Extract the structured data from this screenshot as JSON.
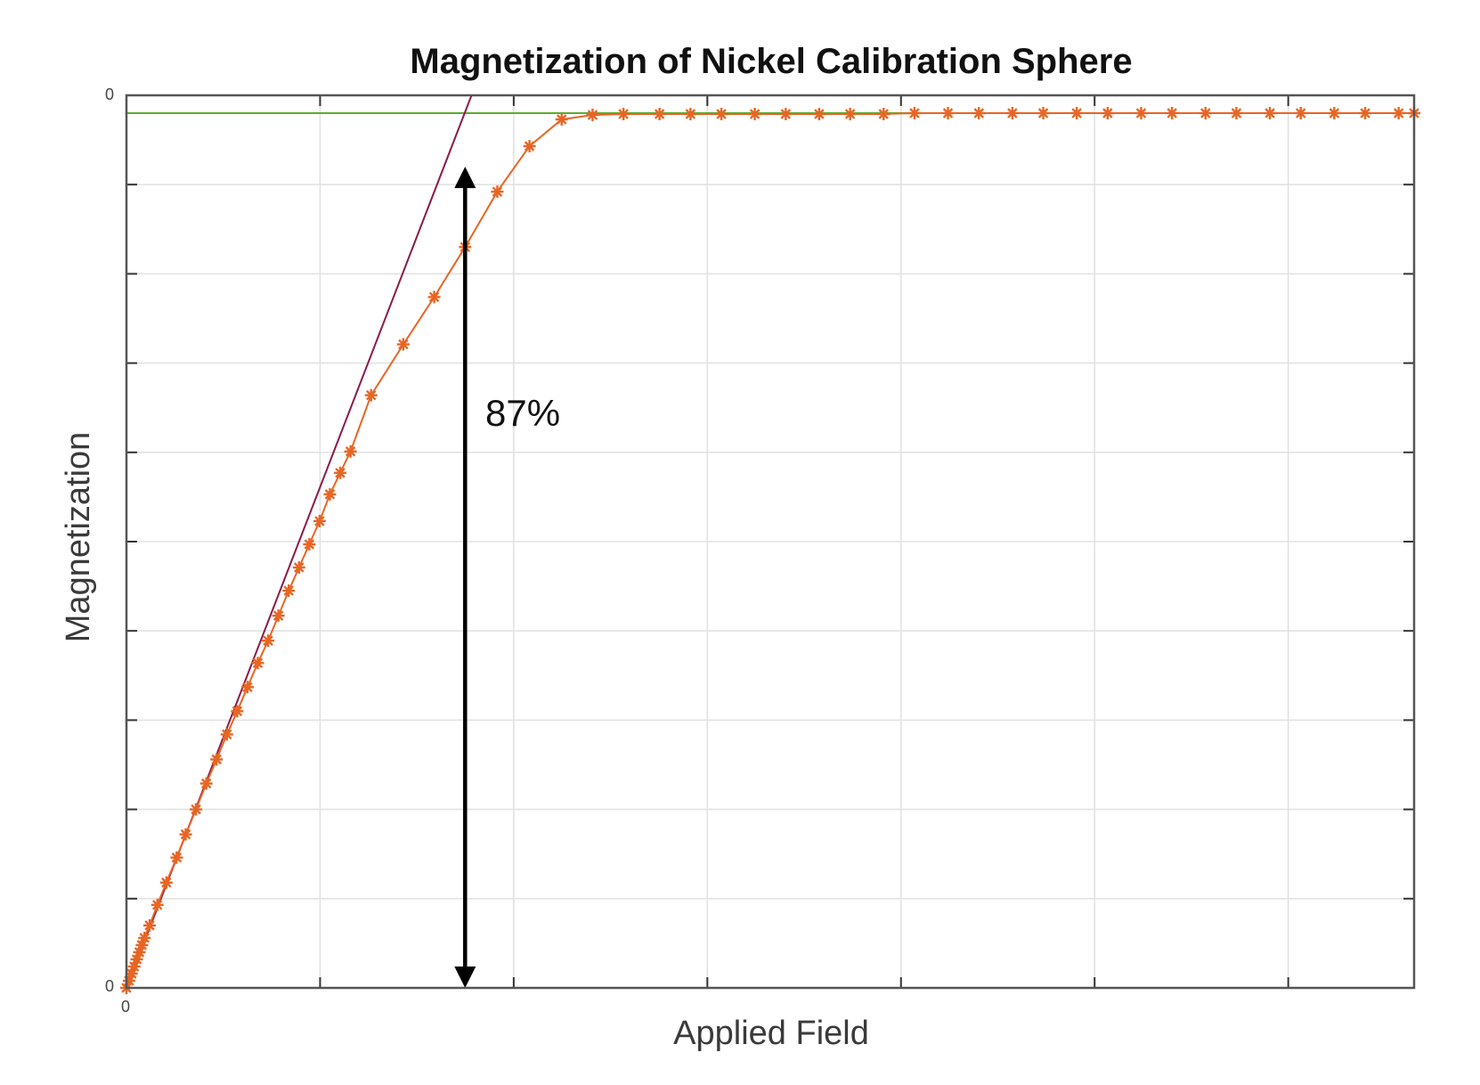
{
  "chart_data": {
    "type": "line",
    "title": "Magnetization of Nickel Calibration Sphere",
    "xlabel": "Applied Field",
    "ylabel": "Magnetization",
    "x_ticks_count": 7,
    "y_ticks_count": 10,
    "xlim": [
      0,
      1
    ],
    "ylim": [
      0,
      1
    ],
    "tick_labels": {
      "x_origin": "0",
      "y_origin": "0",
      "y_top": "0"
    },
    "grid": true,
    "colors": {
      "data": "#e86524",
      "fit_line": "#8b1a4a",
      "saturation_line": "#5cab2e",
      "annotation": "#000000"
    },
    "series": [
      {
        "marker": "star",
        "x": [
          0.0,
          0.002,
          0.004,
          0.006,
          0.008,
          0.01,
          0.012,
          0.014,
          0.018,
          0.024,
          0.031,
          0.039,
          0.046,
          0.054,
          0.062,
          0.07,
          0.078,
          0.086,
          0.094,
          0.102,
          0.11,
          0.118,
          0.126,
          0.134,
          0.142,
          0.15,
          0.158,
          0.166,
          0.174,
          0.19,
          0.215,
          0.239,
          0.263,
          0.288,
          0.313,
          0.338,
          0.362,
          0.386,
          0.414,
          0.438,
          0.462,
          0.488,
          0.512,
          0.538,
          0.562,
          0.588,
          0.612,
          0.638,
          0.662,
          0.688,
          0.712,
          0.738,
          0.762,
          0.788,
          0.812,
          0.838,
          0.862,
          0.888,
          0.912,
          0.938,
          0.962,
          0.988,
          1.0
        ],
        "y": [
          0.0,
          0.008,
          0.016,
          0.024,
          0.032,
          0.04,
          0.048,
          0.056,
          0.07,
          0.093,
          0.118,
          0.146,
          0.172,
          0.2,
          0.229,
          0.256,
          0.284,
          0.31,
          0.337,
          0.364,
          0.389,
          0.417,
          0.445,
          0.471,
          0.497,
          0.523,
          0.553,
          0.577,
          0.601,
          0.664,
          0.721,
          0.774,
          0.83,
          0.892,
          0.943,
          0.973,
          0.978,
          0.979,
          0.979,
          0.979,
          0.979,
          0.979,
          0.979,
          0.979,
          0.979,
          0.979,
          0.98,
          0.98,
          0.98,
          0.98,
          0.98,
          0.98,
          0.98,
          0.98,
          0.98,
          0.98,
          0.98,
          0.98,
          0.98,
          0.98,
          0.98,
          0.98,
          0.98
        ]
      }
    ],
    "fit_line": {
      "x": [
        0.0,
        0.268
      ],
      "y": [
        0.0,
        1.0
      ]
    },
    "saturation_line": {
      "y": 0.98
    },
    "annotation": {
      "text": "87%",
      "x": 0.263,
      "y_from": 0.0,
      "y_to": 0.92
    }
  }
}
